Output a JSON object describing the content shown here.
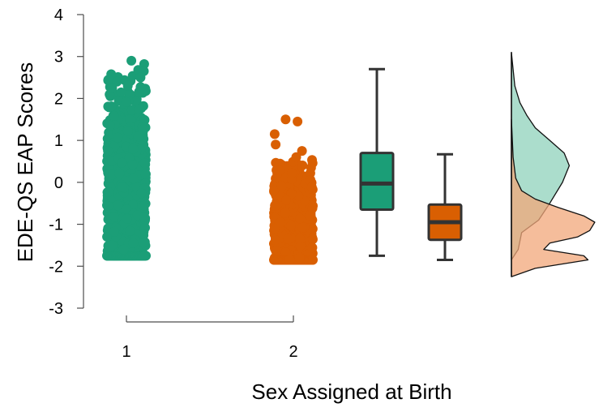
{
  "chart_data": {
    "type": "raincloud",
    "xlabel": "Sex Assigned at Birth",
    "ylabel": "EDE-QS EAP Scores",
    "ylim": [
      -3,
      4
    ],
    "yticks": [
      -3,
      -2,
      -1,
      0,
      1,
      2,
      3,
      4
    ],
    "categories": [
      "1",
      "2"
    ],
    "grid": false,
    "legend": "none",
    "colors": {
      "group1": "#1b9e77",
      "group2": "#d95f02",
      "density1": "#8fd1bb",
      "density2": "#f2a77a",
      "outline": "#333333"
    },
    "groups": [
      {
        "category": "1",
        "points": {
          "n": 900,
          "min": -1.75,
          "max": 2.9,
          "notable": [
            2.9,
            2.82,
            2.68,
            2.65,
            2.5,
            2.45,
            2.4,
            2.3,
            2.25,
            -1.45,
            -1.5,
            -1.6,
            -1.75
          ]
        },
        "box": {
          "min": -1.75,
          "q1": -0.65,
          "median": -0.03,
          "q3": 0.7,
          "max": 2.7
        },
        "density": [
          [
            -1.85,
            0
          ],
          [
            -1.6,
            0.08
          ],
          [
            -1.2,
            0.12
          ],
          [
            -0.9,
            0.32
          ],
          [
            -0.5,
            0.45
          ],
          [
            0,
            0.6
          ],
          [
            0.4,
            0.68
          ],
          [
            0.7,
            0.62
          ],
          [
            1.0,
            0.45
          ],
          [
            1.3,
            0.28
          ],
          [
            1.6,
            0.18
          ],
          [
            1.9,
            0.1
          ],
          [
            2.3,
            0.04
          ],
          [
            2.9,
            0.01
          ],
          [
            3.1,
            0
          ]
        ]
      },
      {
        "category": "2",
        "points": {
          "n": 700,
          "min": -1.85,
          "max": 1.5,
          "notable": [
            1.5,
            1.45,
            1.15,
            0.9,
            0.75,
            0.6,
            -1.85,
            -1.8
          ]
        },
        "box": {
          "min": -1.85,
          "q1": -1.37,
          "median": -0.95,
          "q3": -0.53,
          "max": 0.67
        },
        "density": [
          [
            -2.25,
            0
          ],
          [
            -2.05,
            0.28
          ],
          [
            -1.85,
            0.9
          ],
          [
            -1.75,
            0.85
          ],
          [
            -1.6,
            0.38
          ],
          [
            -1.45,
            0.45
          ],
          [
            -1.3,
            0.78
          ],
          [
            -1.15,
            0.92
          ],
          [
            -0.95,
            0.98
          ],
          [
            -0.8,
            0.85
          ],
          [
            -0.6,
            0.55
          ],
          [
            -0.4,
            0.28
          ],
          [
            -0.2,
            0.12
          ],
          [
            0.1,
            0.05
          ],
          [
            0.6,
            0.02
          ],
          [
            1.5,
            0
          ]
        ]
      }
    ]
  }
}
